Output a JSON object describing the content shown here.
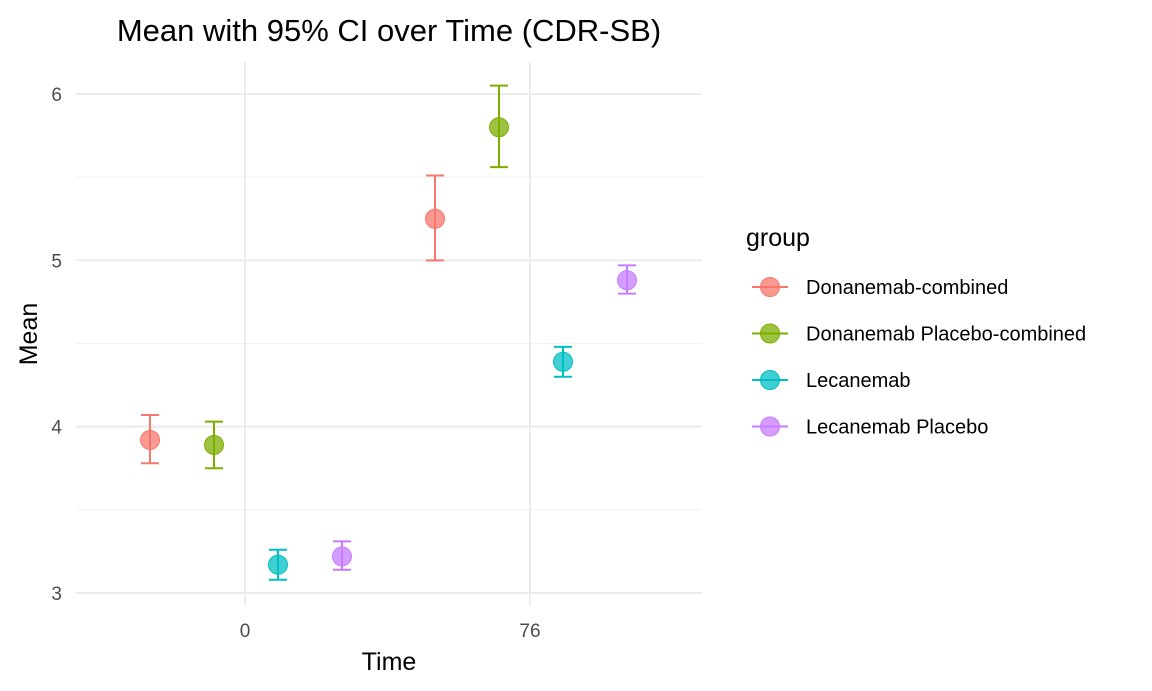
{
  "chart_data": {
    "type": "scatter",
    "title": "Mean with 95% CI over Time (CDR-SB)",
    "xlabel": "Time",
    "ylabel": "Mean",
    "x_ticks": [
      "0",
      "76"
    ],
    "y_ticks": [
      "3",
      "4",
      "5",
      "6"
    ],
    "ylim": [
      2.9,
      6.2
    ],
    "grid": true,
    "legend_title": "group",
    "legend_position": "right",
    "error_bars": "95% CI",
    "series": [
      {
        "name": "Donanemab-combined",
        "color": "#F8766D",
        "points": [
          {
            "x": "0",
            "y": 3.92,
            "lower": 3.78,
            "upper": 4.07
          },
          {
            "x": "76",
            "y": 5.25,
            "lower": 5.0,
            "upper": 5.51
          }
        ]
      },
      {
        "name": "Donanemab Placebo-combined",
        "color": "#7CAE00",
        "points": [
          {
            "x": "0",
            "y": 3.89,
            "lower": 3.75,
            "upper": 4.03
          },
          {
            "x": "76",
            "y": 5.8,
            "lower": 5.56,
            "upper": 6.05
          }
        ]
      },
      {
        "name": "Lecanemab",
        "color": "#00BFC4",
        "points": [
          {
            "x": "0",
            "y": 3.17,
            "lower": 3.08,
            "upper": 3.26
          },
          {
            "x": "76",
            "y": 4.39,
            "lower": 4.3,
            "upper": 4.48
          }
        ]
      },
      {
        "name": "Lecanemab Placebo",
        "color": "#C77CFF",
        "points": [
          {
            "x": "0",
            "y": 3.22,
            "lower": 3.14,
            "upper": 3.31
          },
          {
            "x": "76",
            "y": 4.88,
            "lower": 4.8,
            "upper": 4.97
          }
        ]
      }
    ]
  }
}
